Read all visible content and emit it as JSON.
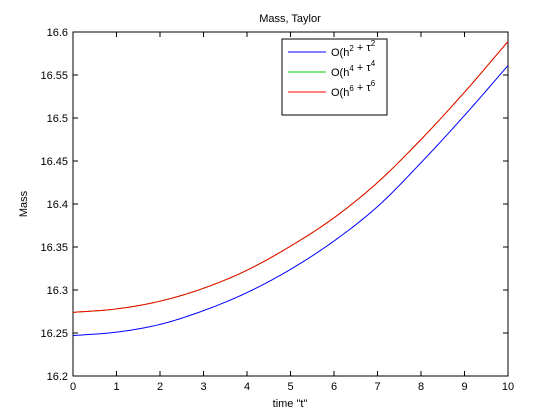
{
  "chart_data": {
    "type": "line",
    "title": "Mass, Taylor",
    "xlabel": "time \"t\"",
    "ylabel": "Mass",
    "xlim": [
      0,
      10
    ],
    "ylim": [
      16.2,
      16.6
    ],
    "xticks": [
      "0",
      "1",
      "2",
      "3",
      "4",
      "5",
      "6",
      "7",
      "8",
      "9",
      "10"
    ],
    "yticks": [
      "16.2",
      "16.25",
      "16.3",
      "16.35",
      "16.4",
      "16.45",
      "16.5",
      "16.55",
      "16.6"
    ],
    "grid": false,
    "legend_position": "top-right",
    "x": [
      0,
      1,
      2,
      3,
      4,
      5,
      6,
      7,
      8,
      9,
      10
    ],
    "series": [
      {
        "name": "O(h² + τ²",
        "legend": {
          "base": "O(h",
          "e1": "2",
          "mid": " + τ",
          "e2": "2"
        },
        "color": "#0000ff",
        "values": [
          16.247,
          16.251,
          16.26,
          16.276,
          16.297,
          16.324,
          16.357,
          16.397,
          16.448,
          16.503,
          16.561
        ]
      },
      {
        "name": "O(h⁴ + τ⁴",
        "legend": {
          "base": "O(h",
          "e1": "4",
          "mid": " + τ",
          "e2": "4"
        },
        "color": "#00cc00",
        "values": [
          16.274,
          16.278,
          16.287,
          16.302,
          16.323,
          16.351,
          16.384,
          16.425,
          16.475,
          16.53,
          16.589
        ]
      },
      {
        "name": "O(h⁶ + τ⁶",
        "legend": {
          "base": "O(h",
          "e1": "6",
          "mid": " + τ",
          "e2": "6"
        },
        "color": "#ff0000",
        "values": [
          16.274,
          16.278,
          16.287,
          16.302,
          16.323,
          16.351,
          16.384,
          16.425,
          16.475,
          16.53,
          16.589
        ]
      }
    ]
  }
}
